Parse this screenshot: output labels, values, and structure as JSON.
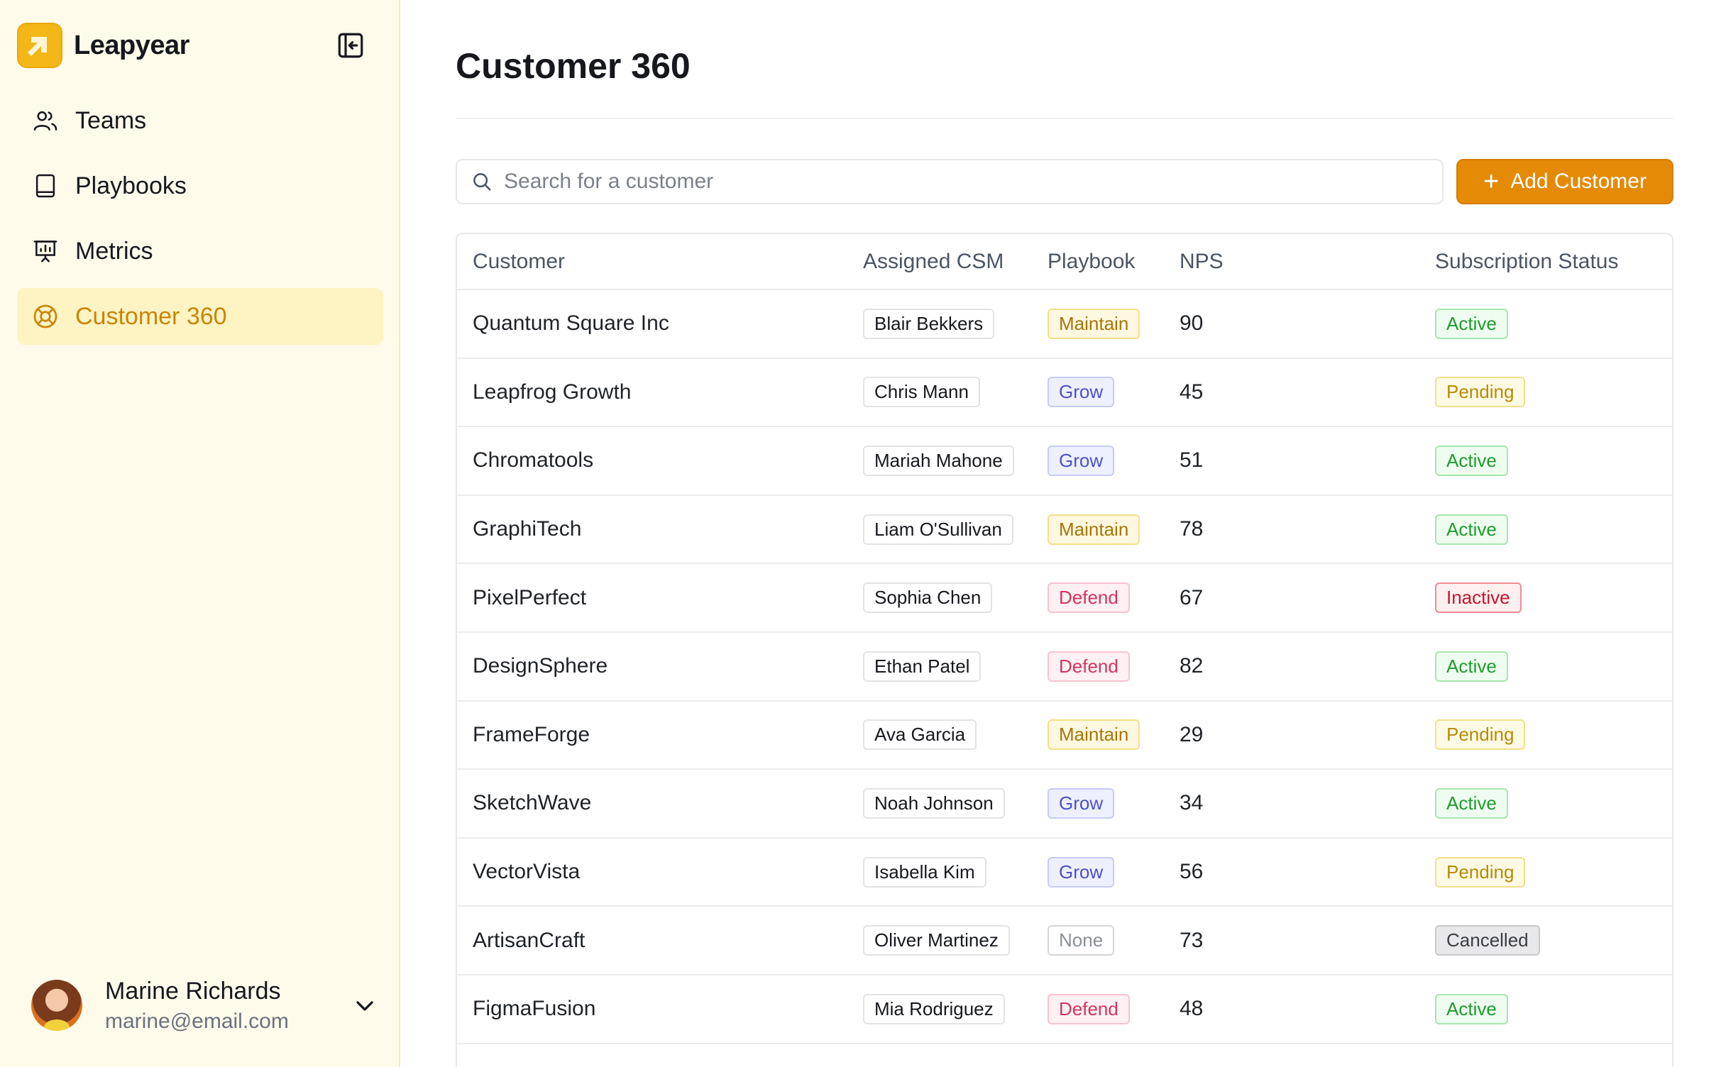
{
  "brand": {
    "name": "Leapyear"
  },
  "sidebar": {
    "items": [
      {
        "label": "Teams",
        "icon": "users-icon"
      },
      {
        "label": "Playbooks",
        "icon": "book-icon"
      },
      {
        "label": "Metrics",
        "icon": "presentation-chart-icon"
      },
      {
        "label": "Customer 360",
        "icon": "lifebuoy-icon",
        "active": true
      }
    ]
  },
  "user": {
    "name": "Marine Richards",
    "email": "marine@email.com"
  },
  "main": {
    "title": "Customer 360",
    "search": {
      "placeholder": "Search for a customer",
      "value": ""
    },
    "add_button": "Add Customer"
  },
  "table": {
    "headers": [
      "Customer",
      "Assigned CSM",
      "Playbook",
      "NPS",
      "Subscription Status"
    ],
    "rows": [
      {
        "customer": "Quantum Square Inc",
        "csm": "Blair Bekkers",
        "playbook": "Maintain",
        "nps": "90",
        "status": "Active"
      },
      {
        "customer": "Leapfrog Growth",
        "csm": "Chris Mann",
        "playbook": "Grow",
        "nps": "45",
        "status": "Pending"
      },
      {
        "customer": "Chromatools",
        "csm": "Mariah Mahone",
        "playbook": "Grow",
        "nps": "51",
        "status": "Active"
      },
      {
        "customer": "GraphiTech",
        "csm": "Liam O'Sullivan",
        "playbook": "Maintain",
        "nps": "78",
        "status": "Active"
      },
      {
        "customer": "PixelPerfect",
        "csm": "Sophia Chen",
        "playbook": "Defend",
        "nps": "67",
        "status": "Inactive"
      },
      {
        "customer": "DesignSphere",
        "csm": "Ethan Patel",
        "playbook": "Defend",
        "nps": "82",
        "status": "Active"
      },
      {
        "customer": "FrameForge",
        "csm": "Ava Garcia",
        "playbook": "Maintain",
        "nps": "29",
        "status": "Pending"
      },
      {
        "customer": "SketchWave",
        "csm": "Noah Johnson",
        "playbook": "Grow",
        "nps": "34",
        "status": "Active"
      },
      {
        "customer": "VectorVista",
        "csm": "Isabella Kim",
        "playbook": "Grow",
        "nps": "56",
        "status": "Pending"
      },
      {
        "customer": "ArtisanCraft",
        "csm": "Oliver Martinez",
        "playbook": "None",
        "nps": "73",
        "status": "Cancelled"
      },
      {
        "customer": "FigmaFusion",
        "csm": "Mia Rodriguez",
        "playbook": "Defend",
        "nps": "48",
        "status": "Active"
      }
    ]
  },
  "colors": {
    "accent": "#e48a06",
    "sidebar_bg": "#fffbeb",
    "active_nav_bg": "#fef3c2",
    "active_nav_text": "#c8860b"
  }
}
